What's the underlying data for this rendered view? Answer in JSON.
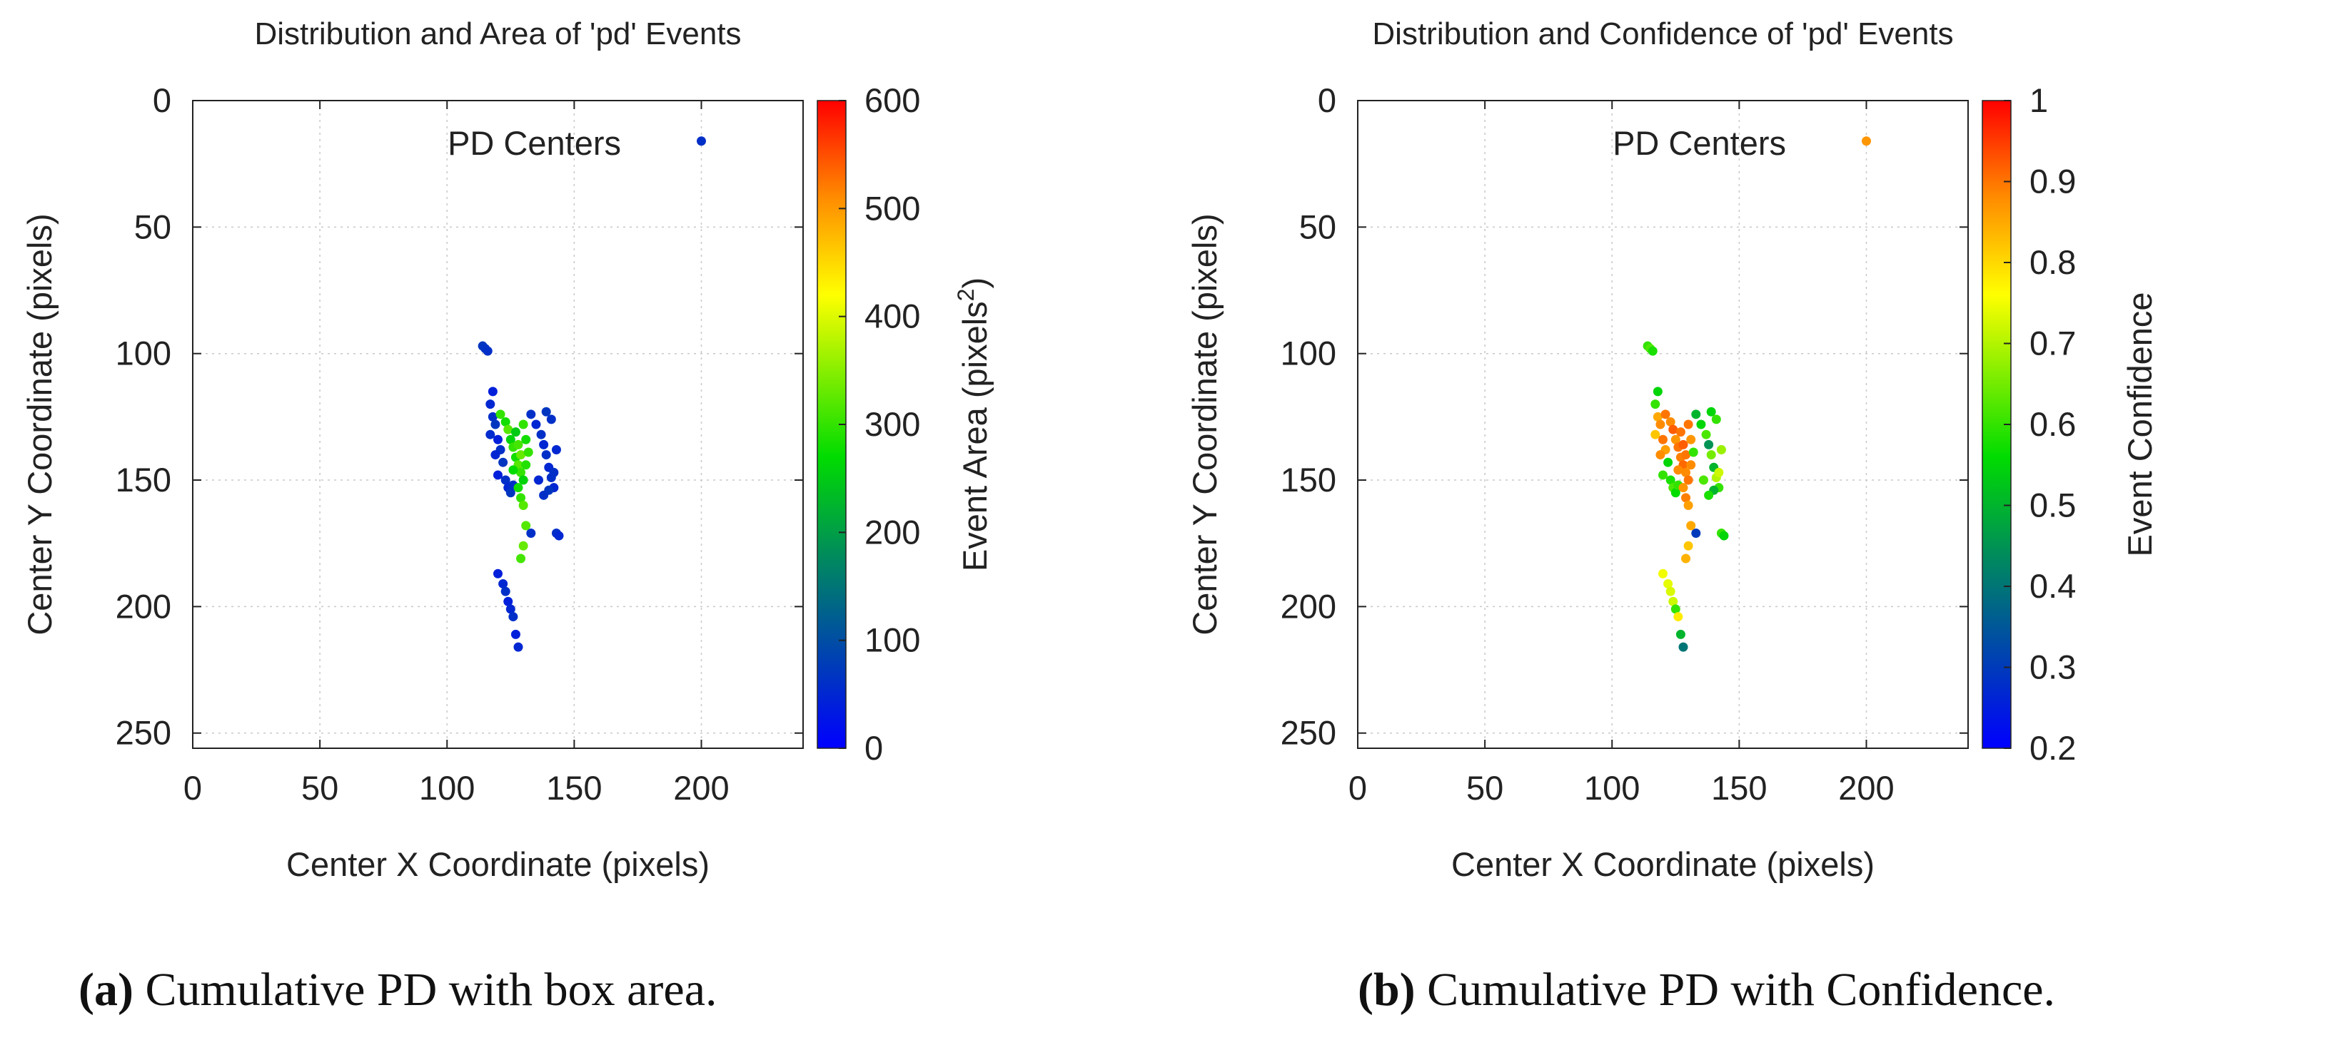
{
  "chart_data": [
    {
      "type": "scatter",
      "title": "Distribution and Area of 'pd' Events",
      "xlabel": "Center X Coordinate (pixels)",
      "ylabel": "Center Y Coordinate (pixels)",
      "xlim": [
        0,
        240
      ],
      "ylim": [
        256,
        0
      ],
      "y_axis_inverted": true,
      "xticks": [
        0,
        50,
        100,
        150,
        200
      ],
      "yticks": [
        0,
        50,
        100,
        150,
        200,
        250
      ],
      "grid": true,
      "legend": {
        "label": "PD Centers",
        "position": "top-right"
      },
      "colorbar": {
        "label_prefix": "Event Area (pixels",
        "label_superscript": "2",
        "label_suffix": ")",
        "range": [
          0,
          600
        ],
        "ticks": [
          0,
          100,
          200,
          300,
          400,
          500,
          600
        ],
        "colormap": "blue-green-yellow-red"
      },
      "series": [
        {
          "points": [
            [
              200,
              16,
              60
            ],
            [
              114,
              97,
              70
            ],
            [
              115,
              98,
              65
            ],
            [
              116,
              99,
              60
            ],
            [
              118,
              115,
              40
            ],
            [
              117,
              120,
              50
            ],
            [
              118,
              125,
              60
            ],
            [
              119,
              128,
              70
            ],
            [
              117,
              132,
              55
            ],
            [
              120,
              134,
              40
            ],
            [
              121,
              138,
              60
            ],
            [
              119,
              140,
              50
            ],
            [
              122,
              143,
              70
            ],
            [
              120,
              148,
              40
            ],
            [
              123,
              150,
              60
            ],
            [
              124,
              153,
              50
            ],
            [
              125,
              155,
              70
            ],
            [
              126,
              152,
              60
            ],
            [
              121,
              124,
              300
            ],
            [
              123,
              127,
              280
            ],
            [
              124,
              130,
              320
            ],
            [
              125,
              134,
              260
            ],
            [
              126,
              137,
              300
            ],
            [
              127,
              141,
              280
            ],
            [
              128,
              144,
              320
            ],
            [
              129,
              147,
              300
            ],
            [
              130,
              150,
              260
            ],
            [
              128,
              153,
              280
            ],
            [
              129,
              157,
              300
            ],
            [
              130,
              160,
              320
            ],
            [
              127,
              131,
              250
            ],
            [
              126,
              146,
              270
            ],
            [
              128,
              136,
              310
            ],
            [
              129,
              140,
              330
            ],
            [
              131,
              144,
              290
            ],
            [
              130,
              128,
              300
            ],
            [
              131,
              134,
              280
            ],
            [
              132,
              139,
              300
            ],
            [
              133,
              124,
              60
            ],
            [
              135,
              128,
              50
            ],
            [
              137,
              132,
              60
            ],
            [
              138,
              136,
              50
            ],
            [
              139,
              140,
              60
            ],
            [
              140,
              145,
              50
            ],
            [
              141,
              149,
              60
            ],
            [
              142,
              153,
              50
            ],
            [
              139,
              123,
              70
            ],
            [
              141,
              126,
              60
            ],
            [
              143,
              138,
              50
            ],
            [
              142,
              147,
              60
            ],
            [
              140,
              154,
              70
            ],
            [
              136,
              150,
              50
            ],
            [
              138,
              156,
              60
            ],
            [
              143,
              171,
              60
            ],
            [
              144,
              172,
              50
            ],
            [
              133,
              171,
              60
            ],
            [
              131,
              168,
              320
            ],
            [
              130,
              176,
              330
            ],
            [
              129,
              181,
              310
            ],
            [
              120,
              187,
              40
            ],
            [
              122,
              191,
              50
            ],
            [
              123,
              194,
              60
            ],
            [
              124,
              198,
              40
            ],
            [
              125,
              201,
              50
            ],
            [
              126,
              204,
              60
            ],
            [
              127,
              211,
              40
            ],
            [
              128,
              216,
              50
            ]
          ]
        }
      ]
    },
    {
      "type": "scatter",
      "title": "Distribution and Confidence of 'pd' Events",
      "xlabel": "Center X Coordinate (pixels)",
      "ylabel": "Center Y Coordinate (pixels)",
      "xlim": [
        0,
        240
      ],
      "ylim": [
        256,
        0
      ],
      "y_axis_inverted": true,
      "xticks": [
        0,
        50,
        100,
        150,
        200
      ],
      "yticks": [
        0,
        50,
        100,
        150,
        200,
        250
      ],
      "grid": true,
      "legend": {
        "label": "PD Centers",
        "position": "top-right"
      },
      "colorbar": {
        "label": "Event Confidence",
        "range": [
          0.2,
          1
        ],
        "ticks": [
          0.2,
          0.3,
          0.4,
          0.5,
          0.6,
          0.7,
          0.8,
          0.9,
          1
        ],
        "tick_labels": [
          "0.2",
          "0.3",
          "0.4",
          "0.5",
          "0.6",
          "0.7",
          "0.8",
          "0.9",
          "1"
        ],
        "colormap": "blue-green-yellow-red"
      },
      "series": [
        {
          "points": [
            [
              200,
              16,
              0.87
            ],
            [
              114,
              97,
              0.6
            ],
            [
              115,
              98,
              0.62
            ],
            [
              116,
              99,
              0.58
            ],
            [
              118,
              115,
              0.55
            ],
            [
              117,
              120,
              0.6
            ],
            [
              118,
              125,
              0.85
            ],
            [
              119,
              128,
              0.88
            ],
            [
              117,
              132,
              0.82
            ],
            [
              120,
              134,
              0.9
            ],
            [
              121,
              138,
              0.86
            ],
            [
              119,
              140,
              0.88
            ],
            [
              122,
              143,
              0.55
            ],
            [
              120,
              148,
              0.6
            ],
            [
              123,
              150,
              0.58
            ],
            [
              124,
              153,
              0.62
            ],
            [
              125,
              155,
              0.56
            ],
            [
              126,
              152,
              0.6
            ],
            [
              121,
              124,
              0.9
            ],
            [
              123,
              127,
              0.88
            ],
            [
              124,
              130,
              0.92
            ],
            [
              125,
              134,
              0.87
            ],
            [
              126,
              137,
              0.9
            ],
            [
              127,
              141,
              0.89
            ],
            [
              128,
              144,
              0.91
            ],
            [
              129,
              147,
              0.88
            ],
            [
              130,
              150,
              0.9
            ],
            [
              128,
              153,
              0.87
            ],
            [
              129,
              157,
              0.89
            ],
            [
              130,
              160,
              0.86
            ],
            [
              127,
              131,
              0.9
            ],
            [
              126,
              146,
              0.88
            ],
            [
              128,
              136,
              0.92
            ],
            [
              129,
              140,
              0.9
            ],
            [
              131,
              144,
              0.88
            ],
            [
              130,
              128,
              0.9
            ],
            [
              131,
              134,
              0.87
            ],
            [
              132,
              139,
              0.6
            ],
            [
              133,
              124,
              0.5
            ],
            [
              135,
              128,
              0.55
            ],
            [
              137,
              132,
              0.62
            ],
            [
              138,
              136,
              0.45
            ],
            [
              139,
              140,
              0.65
            ],
            [
              140,
              145,
              0.5
            ],
            [
              141,
              149,
              0.7
            ],
            [
              142,
              153,
              0.6
            ],
            [
              139,
              123,
              0.55
            ],
            [
              141,
              126,
              0.6
            ],
            [
              143,
              138,
              0.68
            ],
            [
              142,
              147,
              0.72
            ],
            [
              140,
              154,
              0.5
            ],
            [
              136,
              150,
              0.62
            ],
            [
              138,
              156,
              0.58
            ],
            [
              143,
              171,
              0.6
            ],
            [
              144,
              172,
              0.55
            ],
            [
              133,
              171,
              0.3
            ],
            [
              131,
              168,
              0.85
            ],
            [
              130,
              176,
              0.82
            ],
            [
              129,
              181,
              0.84
            ],
            [
              120,
              187,
              0.75
            ],
            [
              122,
              191,
              0.74
            ],
            [
              123,
              194,
              0.73
            ],
            [
              124,
              198,
              0.72
            ],
            [
              125,
              201,
              0.6
            ],
            [
              126,
              204,
              0.78
            ],
            [
              127,
              211,
              0.5
            ],
            [
              128,
              216,
              0.4
            ]
          ]
        }
      ]
    }
  ],
  "captions": [
    {
      "tag": "(a)",
      "text": "Cumulative PD with box area."
    },
    {
      "tag": "(b)",
      "text": "Cumulative PD with Confidence."
    }
  ]
}
